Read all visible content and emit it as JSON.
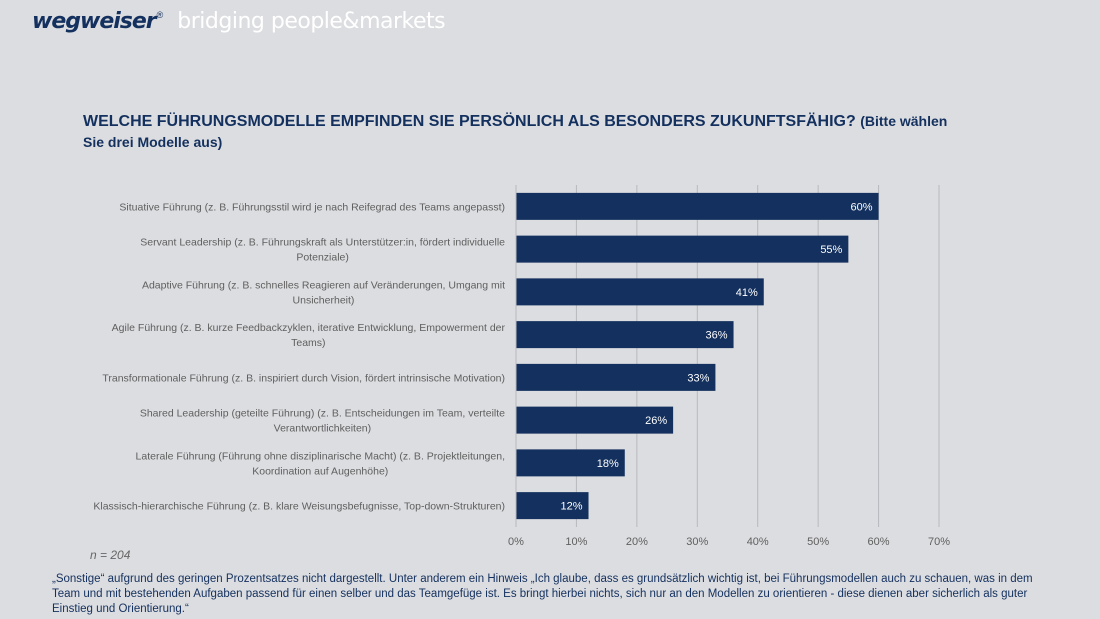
{
  "header": {
    "brand": "wegweiser",
    "registered": "®",
    "tagline": "bridging people&markets"
  },
  "title": {
    "main": "WELCHE FÜHRUNGSMODELLE EMPFINDEN SIE PERSÖNLICH ALS BESONDERS ZUKUNFTSFÄHIG?",
    "sub": "(Bitte wählen Sie drei Modelle aus)"
  },
  "sample_size": "n = 204",
  "footnote": "„Sonstige“ aufgrund des geringen Prozentsatzes nicht dargestellt. Unter anderem ein Hinweis „Ich glaube, dass es grundsätzlich wichtig ist, bei Führungsmodellen auch zu schauen, was in dem Team und mit bestehenden Aufgaben passend für einen selber und das Teamgefüge ist. Es bringt hierbei nichts, sich nur an den Modellen zu orientieren - diese dienen aber sicherlich als guter Einstieg und Orientierung.“",
  "colors": {
    "bar": "#13305e",
    "grid": "#b8b9bd",
    "category_text": "#5f5f5f",
    "tick_text": "#5f5f5f"
  },
  "chart_data": {
    "type": "bar",
    "orientation": "horizontal",
    "categories": [
      [
        "Situative Führung (z. B. Führungsstil wird je nach Reifegrad des Teams angepasst)"
      ],
      [
        "Servant Leadership (z. B. Führungskraft als Unterstützer:in, fördert individuelle",
        "Potenziale)"
      ],
      [
        "Adaptive Führung (z. B. schnelles Reagieren auf Veränderungen, Umgang mit",
        "Unsicherheit)"
      ],
      [
        "Agile Führung (z. B. kurze Feedbackzyklen, iterative Entwicklung, Empowerment der",
        "Teams)"
      ],
      [
        "Transformationale Führung (z. B. inspiriert durch Vision, fördert intrinsische Motivation)"
      ],
      [
        "Shared Leadership (geteilte Führung) (z. B. Entscheidungen im Team, verteilte",
        "Verantwortlichkeiten)"
      ],
      [
        "Laterale Führung (Führung ohne disziplinarische Macht) (z. B. Projektleitungen,",
        "Koordination auf Augenhöhe)"
      ],
      [
        "Klassisch-hierarchische Führung (z. B. klare Weisungsbefugnisse, Top-down-Strukturen)"
      ]
    ],
    "values": [
      60,
      55,
      41,
      36,
      33,
      26,
      18,
      12
    ],
    "value_labels": [
      "60%",
      "55%",
      "41%",
      "36%",
      "33%",
      "26%",
      "18%",
      "12%"
    ],
    "xlim": [
      0,
      70
    ],
    "xticks": [
      0,
      10,
      20,
      30,
      40,
      50,
      60,
      70
    ],
    "xtick_labels": [
      "0%",
      "10%",
      "20%",
      "30%",
      "40%",
      "50%",
      "60%",
      "70%"
    ],
    "grid": true,
    "legend": "none"
  }
}
